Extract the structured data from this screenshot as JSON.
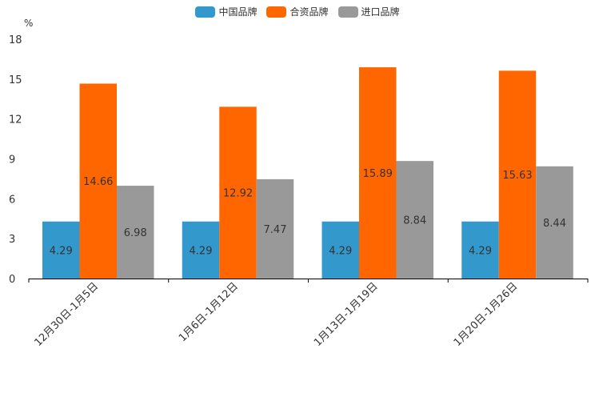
{
  "chart_data": {
    "type": "bar",
    "unit": "%",
    "categories": [
      "12月30日-1月5日",
      "1月6日-1月12日",
      "1月13日-1月19日",
      "1月20日-1月26日"
    ],
    "series": [
      {
        "name": "中国品牌",
        "color": "#3398cc",
        "values": [
          4.29,
          4.29,
          4.29,
          4.29
        ]
      },
      {
        "name": "合资品牌",
        "color": "#ff6600",
        "values": [
          14.66,
          12.92,
          15.89,
          15.63
        ]
      },
      {
        "name": "进口品牌",
        "color": "#999999",
        "values": [
          6.98,
          7.47,
          8.84,
          8.44
        ]
      }
    ],
    "value_labels": [
      [
        "4.29",
        "4.29",
        "4.29",
        "4.29"
      ],
      [
        "14.66",
        "12.92",
        "15.89",
        "15.63"
      ],
      [
        "6.98",
        "7.47",
        "8.84",
        "8.44"
      ]
    ],
    "y_ticks": [
      "0",
      "3",
      "6",
      "9",
      "12",
      "15",
      "18"
    ],
    "ylim": [
      0,
      18
    ],
    "legend_position": "top-center",
    "grid": false
  }
}
